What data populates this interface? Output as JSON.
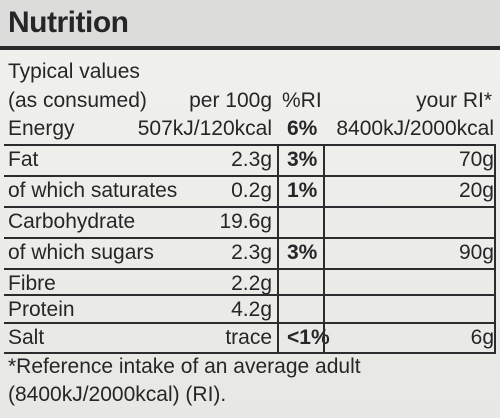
{
  "label": {
    "title": "Nutrition",
    "typical_values": "Typical values",
    "as_consumed": "(as consumed)"
  },
  "columns": {
    "per100": "per 100g",
    "ri": "%RI",
    "your_ri": "your RI*"
  },
  "rows": [
    {
      "nutrient": "Energy",
      "per100": "507kJ/120kcal",
      "ri": "6%",
      "your_ri": "8400kJ/2000kcal"
    },
    {
      "nutrient": "Fat",
      "per100": "2.3g",
      "ri": "3%",
      "your_ri": "70g"
    },
    {
      "nutrient": "of which saturates",
      "per100": "0.2g",
      "ri": "1%",
      "your_ri": "20g"
    },
    {
      "nutrient": "Carbohydrate",
      "per100": "19.6g",
      "ri": "",
      "your_ri": ""
    },
    {
      "nutrient": "of which sugars",
      "per100": "2.3g",
      "ri": "3%",
      "your_ri": "90g"
    },
    {
      "nutrient": "Fibre",
      "per100": "2.2g",
      "ri": "",
      "your_ri": ""
    },
    {
      "nutrient": "Protein",
      "per100": "4.2g",
      "ri": "",
      "your_ri": ""
    },
    {
      "nutrient": "Salt",
      "per100": "trace",
      "ri": "<1%",
      "your_ri": "6g"
    }
  ],
  "footnote": {
    "line1": "*Reference intake of an average adult",
    "line2": "(8400kJ/2000kcal) (RI)."
  }
}
